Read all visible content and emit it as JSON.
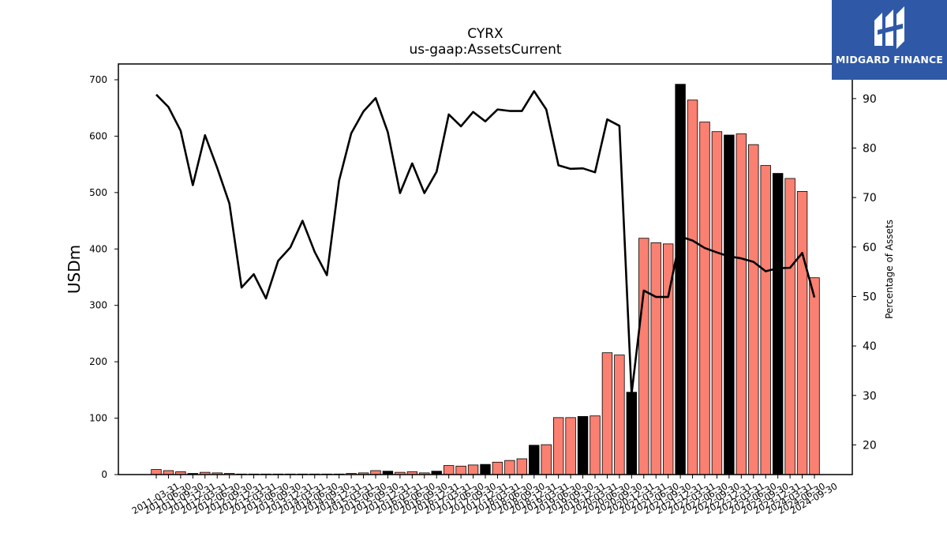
{
  "chart_data": {
    "type": "bar",
    "title": "CYRX",
    "subtitle": "us-gaap:AssetsCurrent",
    "ylabel": "USDm",
    "y2label": "Percentage of Assets",
    "ylim": [
      0,
      728
    ],
    "y2lim": [
      14,
      97
    ],
    "yticks": [
      0,
      100,
      200,
      300,
      400,
      500,
      600,
      700
    ],
    "y2ticks": [
      20,
      30,
      40,
      50,
      60,
      70,
      80,
      90
    ],
    "grid": false,
    "colors": {
      "bar": "#fa8072",
      "bar_highlight": "#000000",
      "line": "#000000"
    },
    "categories": [
      "2011-03-31",
      "2011-06-30",
      "2011-09-30",
      "2011-12-31",
      "2012-03-31",
      "2012-06-30",
      "2012-09-30",
      "2012-12-31",
      "2013-03-31",
      "2013-06-30",
      "2013-09-30",
      "2013-12-31",
      "2014-03-31",
      "2014-06-30",
      "2014-09-30",
      "2014-12-31",
      "2015-03-31",
      "2015-06-30",
      "2015-09-30",
      "2015-12-31",
      "2016-03-31",
      "2016-06-30",
      "2016-09-30",
      "2016-12-31",
      "2017-03-31",
      "2017-06-30",
      "2017-09-30",
      "2017-12-31",
      "2018-03-31",
      "2018-06-30",
      "2018-09-30",
      "2018-12-31",
      "2019-03-31",
      "2019-06-30",
      "2019-09-30",
      "2019-12-31",
      "2020-03-31",
      "2020-06-30",
      "2020-09-30",
      "2020-12-31",
      "2021-03-31",
      "2021-06-30",
      "2021-09-30",
      "2021-12-31",
      "2022-03-31",
      "2022-06-30",
      "2022-09-30",
      "2022-12-31",
      "2023-03-31",
      "2023-06-30",
      "2023-09-30",
      "2023-12-31",
      "2024-03-31",
      "2024-06-30",
      "2024-09-30"
    ],
    "series": [
      {
        "type": "bar",
        "values": [
          9,
          7,
          5,
          2,
          4,
          3,
          2,
          1,
          1,
          1,
          1,
          1,
          1,
          1,
          1,
          1,
          2,
          3,
          7,
          6,
          4,
          5,
          3,
          6,
          16,
          15,
          17,
          18,
          22,
          25,
          28,
          52,
          53,
          101,
          101,
          103,
          104,
          216,
          212,
          146,
          419,
          411,
          409,
          692,
          664,
          625,
          608,
          602,
          604,
          585,
          548,
          534,
          525,
          502,
          349
        ],
        "highlight": [
          false,
          false,
          false,
          true,
          false,
          false,
          false,
          true,
          false,
          false,
          false,
          true,
          false,
          false,
          false,
          true,
          false,
          false,
          false,
          true,
          false,
          false,
          false,
          true,
          false,
          false,
          false,
          true,
          false,
          false,
          false,
          true,
          false,
          false,
          false,
          true,
          false,
          false,
          false,
          true,
          false,
          false,
          false,
          true,
          false,
          false,
          false,
          true,
          false,
          false,
          false,
          true,
          false,
          false,
          false
        ]
      },
      {
        "type": "line",
        "axis": "right",
        "values": [
          90.8,
          88.3,
          83.5,
          72.5,
          82.6,
          76.0,
          68.8,
          51.8,
          54.5,
          49.6,
          57.2,
          59.9,
          65.3,
          59.0,
          54.3,
          73.4,
          83.0,
          87.4,
          90.1,
          83.2,
          70.9,
          76.9,
          70.9,
          75.2,
          86.8,
          84.4,
          87.3,
          85.4,
          87.8,
          87.5,
          87.5,
          91.5,
          87.8,
          76.5,
          75.8,
          75.9,
          75.1,
          85.8,
          84.5,
          30.3,
          51.2,
          49.9,
          49.9,
          62.1,
          61.3,
          59.8,
          58.9,
          58.1,
          57.7,
          57.0,
          55.1,
          55.7,
          55.8,
          58.8,
          49.8
        ]
      }
    ]
  },
  "branding": {
    "logo_text": "MIDGARD FINANCE"
  }
}
